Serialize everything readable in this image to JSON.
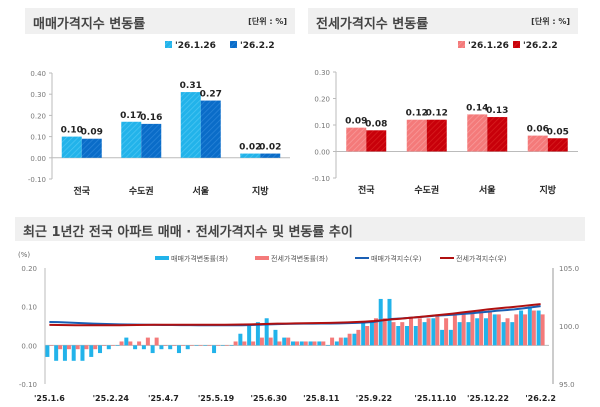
{
  "colors": {
    "sale_light": "#22b3ea",
    "sale_dark": "#0a6cc8",
    "jeonse_light": "#f47a7a",
    "jeonse_dark": "#c8000a",
    "sale_line": "#1a5fb4",
    "jeonse_line": "#b01010"
  },
  "chart_data": [
    {
      "type": "bar",
      "title": "매매가격지수 변동률",
      "unit": "[단위 : %]",
      "categories": [
        "전국",
        "수도권",
        "서울",
        "지방"
      ],
      "series": [
        {
          "name": "'26.1.26",
          "values": [
            0.1,
            0.17,
            0.31,
            0.02
          ]
        },
        {
          "name": "'26.2.2",
          "values": [
            0.09,
            0.16,
            0.27,
            0.02
          ]
        }
      ],
      "ylim": [
        -0.1,
        0.4
      ],
      "yticks": [
        "0.40",
        "0.30",
        "0.20",
        "0.10",
        "0.00",
        "-0.10"
      ],
      "legend": "top-right",
      "grid": false
    },
    {
      "type": "bar",
      "title": "전세가격지수 변동률",
      "unit": "[단위 : %]",
      "categories": [
        "전국",
        "수도권",
        "서울",
        "지방"
      ],
      "series": [
        {
          "name": "'26.1.26",
          "values": [
            0.09,
            0.12,
            0.14,
            0.06
          ]
        },
        {
          "name": "'26.2.2",
          "values": [
            0.08,
            0.12,
            0.13,
            0.05
          ]
        }
      ],
      "ylim": [
        -0.1,
        0.3
      ],
      "yticks": [
        "0.30",
        "0.20",
        "0.10",
        "0.00",
        "-0.10"
      ],
      "legend": "top-right",
      "grid": false
    },
    {
      "type": "bar+line",
      "title": "최근 1년간 전국 아파트 매매 · 전세가격지수 및 변동률 추이",
      "ylabel_left": "(%)",
      "ylim_left": [
        -0.1,
        0.2
      ],
      "yticks_left": [
        "0.20",
        "0.10",
        "0.00",
        "-0.10"
      ],
      "ylim_right": [
        95.0,
        105.0
      ],
      "yticks_right": [
        "105.0",
        "100.0",
        "95.0"
      ],
      "x_ticks": [
        {
          "label": "'25.1.6",
          "week": 0
        },
        {
          "label": "'25.2.24",
          "week": 7
        },
        {
          "label": "'25.4.7",
          "week": 13
        },
        {
          "label": "'25.5.19",
          "week": 19
        },
        {
          "label": "'25.6.30",
          "week": 25
        },
        {
          "label": "'25.8.11",
          "week": 31
        },
        {
          "label": "'25.9.22",
          "week": 37
        },
        {
          "label": "'25.11.10",
          "week": 44
        },
        {
          "label": "'25.12.22",
          "week": 50
        },
        {
          "label": "'26.2.2",
          "week": 56
        }
      ],
      "legend": "top",
      "grid": false,
      "series": [
        {
          "name": "매매가격변동률(좌)",
          "kind": "bar",
          "values": [
            -0.03,
            -0.04,
            -0.04,
            -0.04,
            -0.04,
            -0.03,
            -0.02,
            -0.01,
            0.0,
            0.02,
            -0.01,
            -0.01,
            -0.02,
            -0.01,
            -0.01,
            -0.02,
            -0.01,
            0.0,
            0.0,
            -0.02,
            0.0,
            0.0,
            0.03,
            0.05,
            0.06,
            0.07,
            0.04,
            0.02,
            0.01,
            0.01,
            0.01,
            0.01,
            0.0,
            0.01,
            0.02,
            0.03,
            0.06,
            0.06,
            0.12,
            0.12,
            0.05,
            0.05,
            0.05,
            0.06,
            0.07,
            0.04,
            0.04,
            0.06,
            0.06,
            0.07,
            0.07,
            0.08,
            0.06,
            0.06,
            0.09,
            0.1,
            0.09
          ]
        },
        {
          "name": "전세가격변동률(좌)",
          "kind": "bar",
          "values": [
            0.0,
            -0.01,
            -0.01,
            -0.01,
            -0.01,
            -0.01,
            0.0,
            0.0,
            0.01,
            0.01,
            0.01,
            0.02,
            0.02,
            0.0,
            0.0,
            0.0,
            0.0,
            0.0,
            0.0,
            0.0,
            0.0,
            0.01,
            0.01,
            0.01,
            0.02,
            0.02,
            0.01,
            0.02,
            0.01,
            0.01,
            0.01,
            0.01,
            0.02,
            0.02,
            0.03,
            0.04,
            0.05,
            0.07,
            0.07,
            0.06,
            0.06,
            0.07,
            0.07,
            0.07,
            0.08,
            0.07,
            0.08,
            0.08,
            0.09,
            0.09,
            0.09,
            0.08,
            0.07,
            0.08,
            0.08,
            0.09,
            0.08
          ]
        },
        {
          "name": "매매가격지수(우)",
          "kind": "line",
          "values": [
            100.35,
            100.33,
            100.3,
            100.27,
            100.24,
            100.21,
            100.18,
            100.16,
            100.14,
            100.13,
            100.12,
            100.11,
            100.1,
            100.09,
            100.09,
            100.08,
            100.08,
            100.07,
            100.07,
            100.06,
            100.06,
            100.06,
            100.07,
            100.09,
            100.11,
            100.14,
            100.16,
            100.18,
            100.19,
            100.2,
            100.21,
            100.22,
            100.22,
            100.23,
            100.25,
            100.27,
            100.3,
            100.36,
            100.48,
            100.6,
            100.65,
            100.7,
            100.76,
            100.82,
            100.89,
            100.93,
            100.97,
            101.03,
            101.09,
            101.16,
            101.23,
            101.31,
            101.37,
            101.43,
            101.52,
            101.62,
            101.71
          ]
        },
        {
          "name": "전세가격지수(우)",
          "kind": "line",
          "values": [
            100.1,
            100.09,
            100.08,
            100.07,
            100.06,
            100.06,
            100.06,
            100.06,
            100.07,
            100.08,
            100.09,
            100.1,
            100.11,
            100.11,
            100.11,
            100.11,
            100.11,
            100.11,
            100.11,
            100.11,
            100.11,
            100.12,
            100.13,
            100.14,
            100.16,
            100.18,
            100.2,
            100.21,
            100.23,
            100.24,
            100.25,
            100.26,
            100.27,
            100.29,
            100.31,
            100.34,
            100.38,
            100.43,
            100.5,
            100.57,
            100.63,
            100.7,
            100.77,
            100.84,
            100.92,
            100.99,
            101.07,
            101.16,
            101.25,
            101.34,
            101.43,
            101.51,
            101.58,
            101.65,
            101.73,
            101.81,
            101.89
          ]
        }
      ]
    }
  ]
}
